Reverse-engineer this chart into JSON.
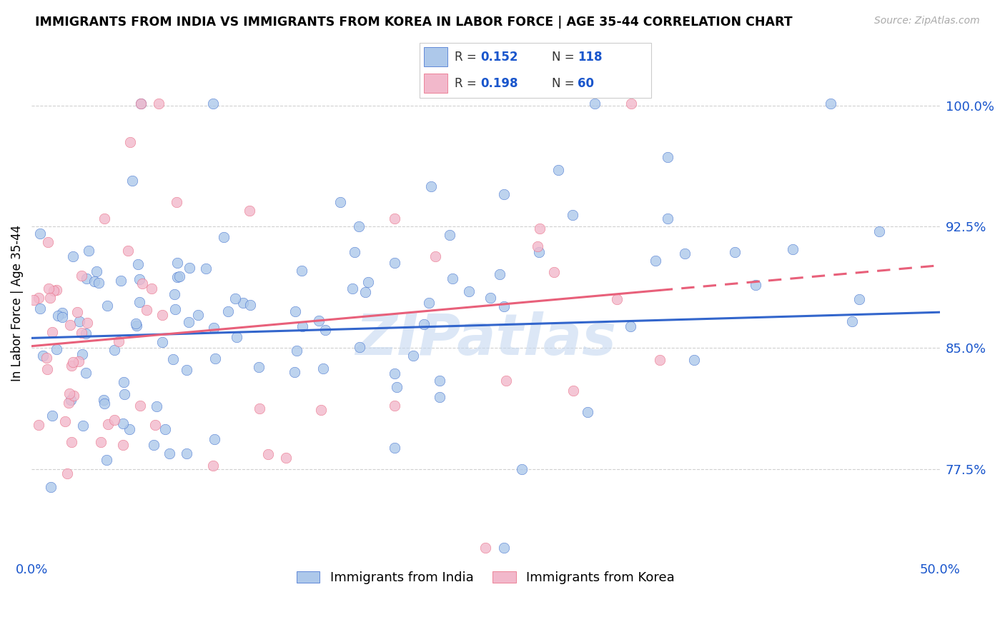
{
  "title": "IMMIGRANTS FROM INDIA VS IMMIGRANTS FROM KOREA IN LABOR FORCE | AGE 35-44 CORRELATION CHART",
  "source": "Source: ZipAtlas.com",
  "ylabel": "In Labor Force | Age 35-44",
  "yticks": [
    "100.0%",
    "92.5%",
    "85.0%",
    "77.5%"
  ],
  "ytick_values": [
    1.0,
    0.925,
    0.85,
    0.775
  ],
  "xlim": [
    0.0,
    0.5
  ],
  "ylim": [
    0.72,
    1.035
  ],
  "r_india": "0.152",
  "n_india": "118",
  "r_korea": "0.198",
  "n_korea": "60",
  "color_india": "#adc8ea",
  "color_korea": "#f2b8cb",
  "trendline_india_color": "#3366cc",
  "trendline_korea_color": "#e8607a",
  "watermark": "ZIPatlas",
  "watermark_color": "#c5d8f0",
  "legend_text_color": "#1a56cc",
  "legend_r_label_color": "#000000"
}
